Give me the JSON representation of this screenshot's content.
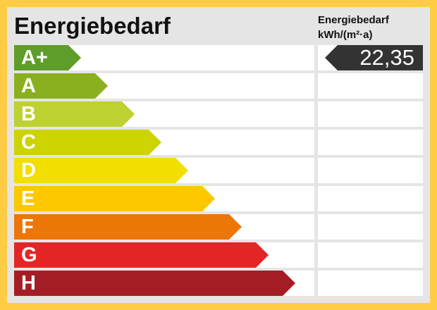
{
  "title": "Energiebedarf",
  "column_header": {
    "line1": "Energiebedarf",
    "line2": "kWh/(m²·a)"
  },
  "classes": [
    {
      "label": "A+",
      "color": "#5E9D2A"
    },
    {
      "label": "A",
      "color": "#8AB020"
    },
    {
      "label": "B",
      "color": "#BDD130"
    },
    {
      "label": "C",
      "color": "#CDD300"
    },
    {
      "label": "D",
      "color": "#F2DE00"
    },
    {
      "label": "E",
      "color": "#FDC800"
    },
    {
      "label": "F",
      "color": "#ED7609"
    },
    {
      "label": "G",
      "color": "#E42525"
    },
    {
      "label": "H",
      "color": "#A51D24"
    }
  ],
  "value": {
    "text": "22,35",
    "class": "A+"
  },
  "colors": {
    "frame": "#FFCC44",
    "panel": "#E5E5E5",
    "marker": "#333333"
  }
}
